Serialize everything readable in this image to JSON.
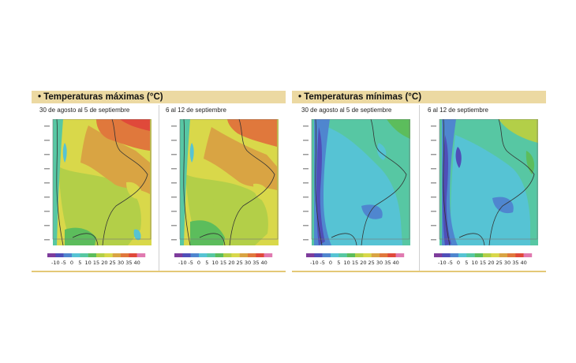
{
  "panels": [
    {
      "title": "• Temperaturas máximas (°C)",
      "maps": [
        {
          "period": "30 de agosto al 5 de septiembre",
          "variant": "max1"
        },
        {
          "period": "6 al 12 de septiembre",
          "variant": "max2"
        }
      ]
    },
    {
      "title": "• Temperaturas mínimas (°C)",
      "maps": [
        {
          "period": "30 de agosto al 5 de septiembre",
          "variant": "min1"
        },
        {
          "period": "6 al 12 de septiembre",
          "variant": "min2"
        }
      ]
    }
  ],
  "colorbar": {
    "labels": [
      "-10",
      "-5",
      "0",
      "5",
      "10",
      "15",
      "20",
      "25",
      "30",
      "35",
      "40"
    ],
    "colors": [
      "#7e3c9c",
      "#4f4fb8",
      "#4f86cf",
      "#56c3d4",
      "#57c7a3",
      "#5cbd5c",
      "#b3cf48",
      "#d9d84a",
      "#d9a443",
      "#e0783c",
      "#e0493a",
      "#e07ab0"
    ]
  },
  "palette": {
    "header_bg": "#ecd9a2",
    "rule": "#e4c877"
  }
}
